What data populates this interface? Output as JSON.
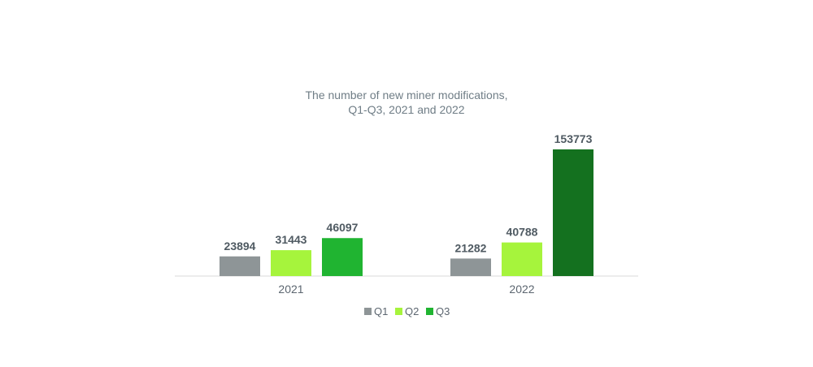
{
  "chart_data": {
    "type": "bar",
    "title_lines": [
      "The number of new miner modifications,",
      "Q1-Q3, 2021 and 2022"
    ],
    "categories": [
      "2021",
      "2022"
    ],
    "series": [
      {
        "name": "Q1",
        "color": "#8e9597",
        "values": [
          23894,
          21282
        ]
      },
      {
        "name": "Q2",
        "color": "#a6f43c",
        "values": [
          31443,
          40788
        ]
      },
      {
        "name": "Q3",
        "color": "#20b431",
        "values": [
          46097,
          153773
        ]
      }
    ],
    "highlight": {
      "series": "Q3",
      "category": "2022",
      "color": "#14711f"
    },
    "ylim": [
      0,
      160000
    ],
    "grid": false,
    "legend_position": "bottom"
  }
}
